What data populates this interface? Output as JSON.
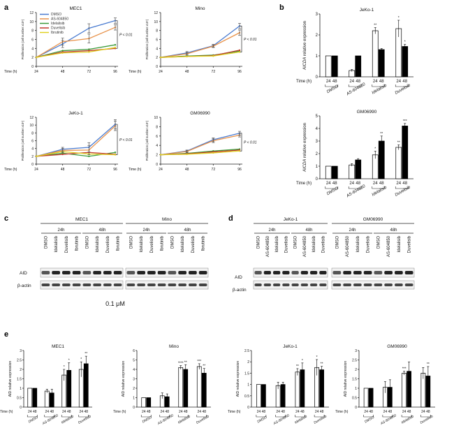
{
  "labels": {
    "a": "a",
    "b": "b",
    "c": "c",
    "d": "d",
    "e": "e"
  },
  "colors": {
    "DMSO": "#4a7bd0",
    "AS-604850": "#e8924a",
    "Idelalisib": "#3a9a3a",
    "Duvelisib": "#c0392b",
    "Ibrutinib": "#e0d020"
  },
  "panel_a": {
    "legend": [
      "DMSO",
      "AS-604850",
      "Idelalisib",
      "Duvelisib",
      "Ibrutinib"
    ],
    "xlabel": "Time (h)",
    "ylabel": "Proliferation (cell number x10⁵)",
    "pvalue": "P < 0.01"
  },
  "panel_b": {
    "ylabel_gene": "AICDA",
    "ylabel_rest": " relative expression",
    "time_label": "Time (h)",
    "groups": [
      "DMSO",
      "AS-604850",
      "Idelalisib",
      "Duvelisib"
    ],
    "times": [
      "24",
      "48"
    ]
  },
  "panel_c": {
    "cells": [
      "MEC1",
      "Mino"
    ],
    "times": [
      "24h",
      "48h"
    ],
    "lanes": [
      "DMSO",
      "Idelalisib",
      "Duvelisib",
      "Ibrutinib"
    ],
    "rows": [
      "AID",
      "β-actin"
    ],
    "concentration": "0.1 μM"
  },
  "panel_d": {
    "cells": [
      "JeKo-1",
      "GM06990"
    ],
    "times": [
      "24h",
      "48h"
    ],
    "lanes": [
      "DMSO",
      "AS-604850",
      "Idelalisib",
      "Duvelisib"
    ],
    "rows": [
      "AID",
      "β-actin"
    ]
  },
  "panel_e": {
    "ylabel": "AID relative expression",
    "time_label": "Time (h)",
    "groups": [
      "DMSO",
      "AS-604850",
      "Idelalisib",
      "Duvelisib"
    ],
    "times": [
      "24",
      "48"
    ]
  },
  "chart_data": [
    {
      "type": "line",
      "title": "MEC1",
      "xlabel": "Time (h)",
      "ylabel": "Proliferation (cell number x10⁵)",
      "x": [
        24,
        48,
        72,
        96
      ],
      "ylim": [
        0,
        12
      ],
      "yticks": [
        0,
        2,
        4,
        6,
        8,
        10,
        12
      ],
      "series": [
        {
          "name": "DMSO",
          "values": [
            2,
            5,
            8.5,
            10.2
          ]
        },
        {
          "name": "AS-604850",
          "values": [
            2,
            5.5,
            6.2,
            8.7
          ]
        },
        {
          "name": "Idelalisib",
          "values": [
            2,
            3.5,
            3.8,
            4.8
          ]
        },
        {
          "name": "Duvelisib",
          "values": [
            2,
            3.2,
            3.5,
            4.0
          ]
        },
        {
          "name": "Ibrutinib",
          "values": [
            2,
            3.0,
            3.2,
            4.2
          ]
        }
      ],
      "err": [
        0,
        0.8,
        1,
        0.6
      ],
      "annotation": "P < 0.01"
    },
    {
      "type": "line",
      "title": "Mino",
      "xlabel": "Time (h)",
      "ylabel": "Proliferation (cell number x10⁵)",
      "x": [
        24,
        48,
        72,
        96
      ],
      "ylim": [
        0,
        12
      ],
      "yticks": [
        0,
        2,
        4,
        6,
        8,
        10,
        12
      ],
      "series": [
        {
          "name": "DMSO",
          "values": [
            2,
            3.0,
            4.6,
            9.0
          ]
        },
        {
          "name": "AS-604850",
          "values": [
            2,
            2.8,
            4.5,
            7.5
          ]
        },
        {
          "name": "Idelalisib",
          "values": [
            2,
            2.3,
            2.5,
            3.4
          ]
        },
        {
          "name": "Duvelisib",
          "values": [
            2,
            2.2,
            2.4,
            3.6
          ]
        },
        {
          "name": "Ibrutinib",
          "values": [
            2,
            2.2,
            2.3,
            3.2
          ]
        }
      ],
      "err": [
        0,
        0.3,
        0.3,
        0.6
      ],
      "annotation": "P < 0.01"
    },
    {
      "type": "line",
      "title": "JeKo-1",
      "xlabel": "Time (h)",
      "ylabel": "Proliferation (cell number x10⁵)",
      "x": [
        24,
        48,
        72,
        96
      ],
      "ylim": [
        0,
        12
      ],
      "yticks": [
        0,
        2,
        4,
        6,
        8,
        10,
        12
      ],
      "series": [
        {
          "name": "DMSO",
          "values": [
            2,
            3.8,
            4.3,
            10.2
          ]
        },
        {
          "name": "AS-604850",
          "values": [
            2,
            3.5,
            3.6,
            9.8
          ]
        },
        {
          "name": "Idelalisib",
          "values": [
            2,
            2.8,
            2.0,
            3.0
          ]
        },
        {
          "name": "Duvelisib",
          "values": [
            2,
            2.5,
            3.0,
            2.5
          ]
        },
        {
          "name": "Ibrutinib",
          "values": [
            2,
            3.2,
            2.6,
            2.4
          ]
        }
      ],
      "err": [
        0,
        0.5,
        1.2,
        1.2
      ],
      "annotation": "P < 0.01"
    },
    {
      "type": "line",
      "title": "GM06990",
      "xlabel": "Time (h)",
      "ylabel": "Proliferation (cell number x10⁵)",
      "x": [
        24,
        48,
        72,
        96
      ],
      "ylim": [
        0,
        10
      ],
      "yticks": [
        0,
        2,
        4,
        6,
        8,
        10
      ],
      "series": [
        {
          "name": "DMSO",
          "values": [
            2,
            2.8,
            5.2,
            6.6
          ]
        },
        {
          "name": "AS-604850",
          "values": [
            2,
            2.7,
            5.0,
            6.2
          ]
        },
        {
          "name": "Idelalisib",
          "values": [
            2,
            2.3,
            2.8,
            3.2
          ]
        },
        {
          "name": "Duvelisib",
          "values": [
            2,
            2.2,
            2.6,
            3.0
          ]
        },
        {
          "name": "Ibrutinib",
          "values": [
            2,
            2.1,
            2.4,
            2.8
          ]
        }
      ],
      "err": [
        0,
        0.2,
        0.4,
        0.4
      ],
      "annotation": "P < 0.01"
    },
    {
      "type": "bar",
      "title": "JeKo-1",
      "ylabel": "AICDA relative expression",
      "categories": [
        "DMSO",
        "AS-604850",
        "Idelalisib",
        "Duvelisib"
      ],
      "ylim": [
        0,
        3
      ],
      "yticks": [
        0,
        1,
        2,
        3
      ],
      "series": [
        {
          "name": "24",
          "values": [
            1,
            0.3,
            2.2,
            2.3
          ]
        },
        {
          "name": "48",
          "values": [
            1,
            1,
            1.3,
            1.45
          ]
        }
      ],
      "err": [
        [
          0,
          0.05,
          0.15,
          0.4
        ],
        [
          0,
          0,
          0.05,
          0.1
        ]
      ],
      "stars": [
        [
          "",
          "",
          "**",
          "*"
        ],
        [
          "",
          "",
          "",
          "*"
        ]
      ]
    },
    {
      "type": "bar",
      "title": "GM06990",
      "ylabel": "AICDA relative expression",
      "categories": [
        "DMSO",
        "AS-604850",
        "Idelalisib",
        "Duvelisib"
      ],
      "ylim": [
        0,
        5
      ],
      "yticks": [
        0,
        1,
        2,
        3,
        4,
        5
      ],
      "series": [
        {
          "name": "24",
          "values": [
            1,
            1.1,
            1.9,
            2.5
          ]
        },
        {
          "name": "48",
          "values": [
            1,
            1.5,
            3.0,
            4.2
          ]
        }
      ],
      "err": [
        [
          0,
          0.1,
          0.3,
          0.2
        ],
        [
          0,
          0.1,
          0.4,
          0.2
        ]
      ],
      "stars": [
        [
          "",
          "",
          "*",
          "**"
        ],
        [
          "",
          "",
          "**",
          "***"
        ]
      ]
    },
    {
      "type": "bar",
      "title": "MEC1",
      "ylabel": "AID relative expression",
      "categories": [
        "DMSO",
        "AS-604850",
        "Idelalisib",
        "Duvelisib"
      ],
      "ylim": [
        0,
        3
      ],
      "yticks": [
        0,
        0.5,
        1,
        1.5,
        2,
        2.5,
        3
      ],
      "series": [
        {
          "name": "24",
          "values": [
            1,
            0.85,
            1.7,
            2.0
          ]
        },
        {
          "name": "48",
          "values": [
            1,
            0.75,
            1.95,
            2.3
          ]
        }
      ],
      "err": [
        [
          0,
          0.1,
          0.3,
          0.4
        ],
        [
          0,
          0.2,
          0.4,
          0.4
        ]
      ],
      "stars": [
        [
          "",
          "",
          "*",
          "*"
        ],
        [
          "",
          "",
          "*",
          "**"
        ]
      ]
    },
    {
      "type": "bar",
      "title": "Mino",
      "ylabel": "AID relative expression",
      "categories": [
        "DMSO",
        "AS-604850",
        "Idelalisib",
        "Duvelisib"
      ],
      "ylim": [
        0,
        6
      ],
      "yticks": [
        0,
        1,
        2,
        3,
        4,
        5,
        6
      ],
      "series": [
        {
          "name": "24",
          "values": [
            1,
            1.2,
            4.2,
            4.3
          ]
        },
        {
          "name": "48",
          "values": [
            1,
            1.1,
            4.0,
            3.6
          ]
        }
      ],
      "err": [
        [
          0,
          0.3,
          0.2,
          0.3
        ],
        [
          0,
          0.3,
          0.5,
          0.5
        ]
      ],
      "stars": [
        [
          "",
          "",
          "****",
          "***"
        ],
        [
          "",
          "",
          "**",
          "**"
        ]
      ]
    },
    {
      "type": "bar",
      "title": "JeKo-1",
      "ylabel": "AID relative expression",
      "categories": [
        "DMSO",
        "AS-604850",
        "Idelalisib",
        "Duvelisib"
      ],
      "ylim": [
        0,
        2.5
      ],
      "yticks": [
        0,
        0.5,
        1,
        1.5,
        2,
        2.5
      ],
      "series": [
        {
          "name": "24",
          "values": [
            1,
            0.95,
            1.55,
            1.75
          ]
        },
        {
          "name": "48",
          "values": [
            1,
            1.0,
            1.65,
            1.65
          ]
        }
      ],
      "err": [
        [
          0,
          0.15,
          0.15,
          0.35
        ],
        [
          0,
          0.1,
          0.3,
          0.15
        ]
      ],
      "stars": [
        [
          "",
          "",
          "**",
          "*"
        ],
        [
          "",
          "",
          "*",
          "**"
        ]
      ]
    },
    {
      "type": "bar",
      "title": "GM06990",
      "ylabel": "AID relative expression",
      "categories": [
        "DMSO",
        "AS-604850",
        "Idelalisib",
        "Duvelisib"
      ],
      "ylim": [
        0,
        3
      ],
      "yticks": [
        0,
        0.5,
        1,
        1.5,
        2,
        2.5,
        3
      ],
      "series": [
        {
          "name": "24",
          "values": [
            1,
            1.05,
            1.8,
            1.8
          ]
        },
        {
          "name": "48",
          "values": [
            1,
            1.05,
            1.9,
            1.65
          ]
        }
      ],
      "err": [
        [
          0,
          0.3,
          0.1,
          0.3
        ],
        [
          0,
          0.4,
          0.5,
          0.5
        ]
      ],
      "stars": [
        [
          "",
          "",
          "***",
          ""
        ],
        [
          "",
          "",
          "",
          "**"
        ]
      ]
    }
  ]
}
